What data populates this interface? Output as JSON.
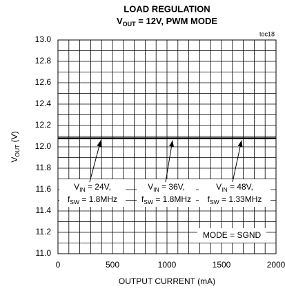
{
  "chart_data": {
    "type": "line",
    "title": "LOAD REGULATION",
    "subtitle": [
      "V",
      "OUT",
      " = 12V, PWM MODE"
    ],
    "corner_label": "toc18",
    "xlabel": "OUTPUT CURRENT (mA)",
    "ylabel": [
      "V",
      "OUT",
      " (V)"
    ],
    "x": [
      0,
      2000
    ],
    "values": [
      12.08,
      12.08
    ],
    "color": "#000000",
    "xlim": [
      0,
      2000
    ],
    "xticks": [
      0,
      500,
      1000,
      1500,
      2000
    ],
    "ylim": [
      11.0,
      13.0
    ],
    "yticks": [
      {
        "value": 11.0,
        "label": "11.0"
      },
      11.2,
      11.4,
      11.6,
      11.8,
      {
        "value": 12.0,
        "label": "12.0"
      },
      12.2,
      12.4,
      12.6,
      12.8,
      {
        "value": 13.0,
        "label": "13.0"
      }
    ],
    "grid": true,
    "minor_grid": {
      "x": 5,
      "y": 2
    },
    "annotations": [
      {
        "line1": [
          "V",
          "IN",
          " = 24V,"
        ],
        "line2": [
          "f",
          "SW",
          " = 1.8MHz"
        ]
      },
      {
        "line1": [
          "V",
          "IN",
          " = 36V,"
        ],
        "line2": [
          "f",
          "SW",
          " = 1.8MHz"
        ]
      },
      {
        "line1": [
          "V",
          "IN",
          " = 48V,"
        ],
        "line2": [
          "f",
          "SW",
          " = 1.33MHz"
        ]
      }
    ],
    "mode_label": "MODE = SGND"
  }
}
